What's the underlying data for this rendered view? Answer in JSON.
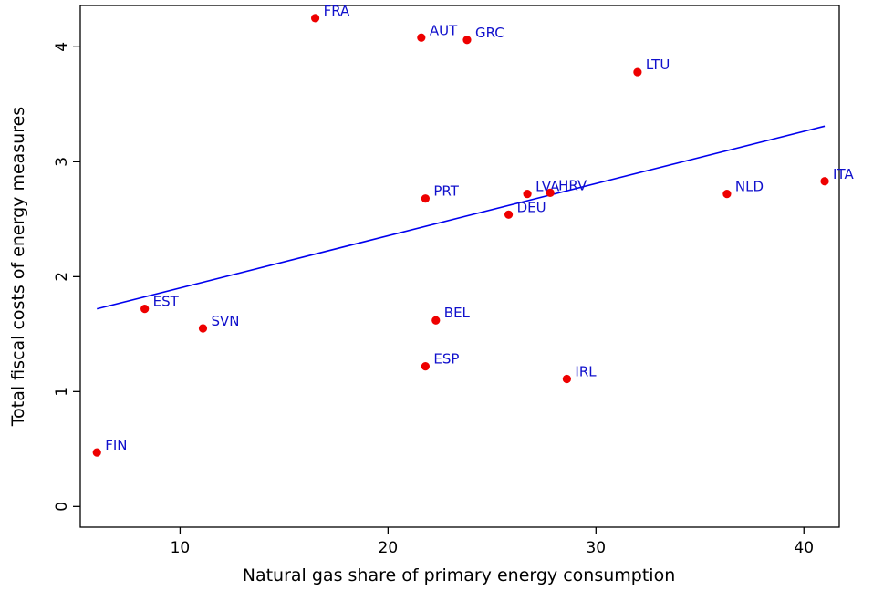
{
  "chart_data": {
    "type": "scatter",
    "xlabel": "Natural gas share of primary energy consumption",
    "ylabel": "Total fiscal costs of energy measures",
    "xlim": [
      5.2,
      41.7
    ],
    "ylim": [
      -0.18,
      4.36
    ],
    "xticks": [
      10,
      20,
      30,
      40
    ],
    "yticks": [
      0,
      1,
      2,
      3,
      4
    ],
    "grid": false,
    "legend": "none",
    "points": [
      {
        "label": "FIN",
        "x": 6.0,
        "y": 0.47
      },
      {
        "label": "EST",
        "x": 8.3,
        "y": 1.72
      },
      {
        "label": "SVN",
        "x": 11.1,
        "y": 1.55
      },
      {
        "label": "FRA",
        "x": 16.5,
        "y": 4.25
      },
      {
        "label": "AUT",
        "x": 21.6,
        "y": 4.08
      },
      {
        "label": "ESP",
        "x": 21.8,
        "y": 1.22
      },
      {
        "label": "PRT",
        "x": 21.8,
        "y": 2.68
      },
      {
        "label": "BEL",
        "x": 22.3,
        "y": 1.62
      },
      {
        "label": "GRC",
        "x": 23.8,
        "y": 4.06
      },
      {
        "label": "DEU",
        "x": 25.8,
        "y": 2.54
      },
      {
        "label": "LVA",
        "x": 26.7,
        "y": 2.72
      },
      {
        "label": "HRV",
        "x": 27.8,
        "y": 2.73
      },
      {
        "label": "IRL",
        "x": 28.6,
        "y": 1.11
      },
      {
        "label": "LTU",
        "x": 32.0,
        "y": 3.78
      },
      {
        "label": "NLD",
        "x": 36.3,
        "y": 2.72
      },
      {
        "label": "ITA",
        "x": 41.0,
        "y": 2.83
      }
    ],
    "fit_line": {
      "x": [
        6.0,
        41.0
      ],
      "y": [
        1.72,
        3.31
      ]
    },
    "colors": {
      "points": "#ee0000",
      "fit_line": "#0000ee",
      "labels": "#1010cc",
      "axes": "#000000"
    }
  }
}
